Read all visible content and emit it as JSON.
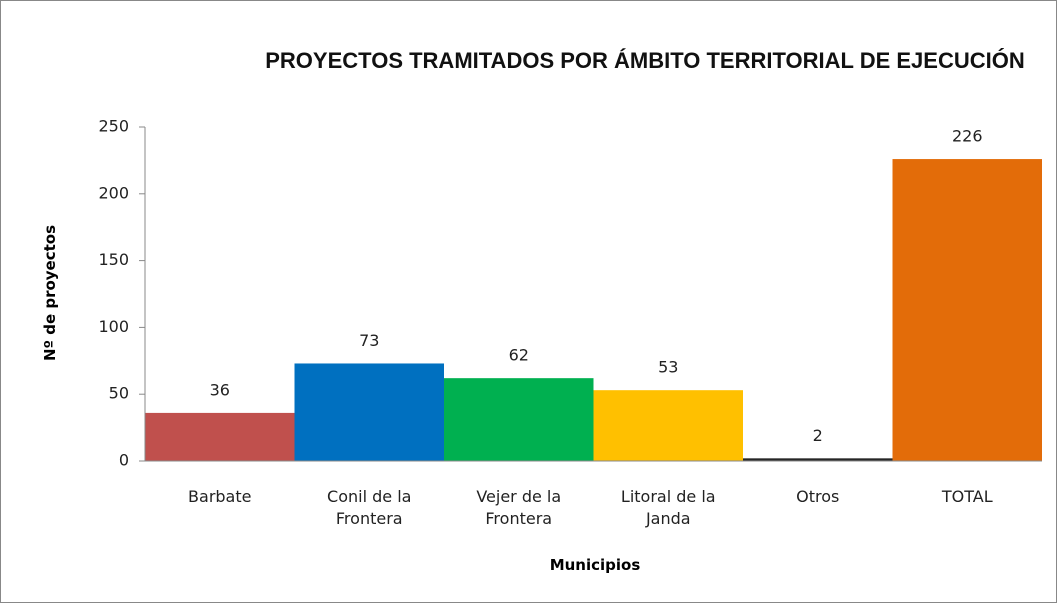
{
  "chart_data": {
    "type": "bar",
    "title": "PROYECTOS TRAMITADOS POR ÁMBITO TERRITORIAL DE EJECUCIÓN",
    "x_label": "Municipios",
    "y_label": "Nº de proyectos",
    "categories": [
      "Barbate",
      "Conil de la Frontera",
      "Vejer de la Frontera",
      "Litoral de la Janda",
      "Otros",
      "TOTAL"
    ],
    "values": [
      36,
      73,
      62,
      53,
      2,
      226
    ],
    "colors": [
      "#c0504d",
      "#0070c0",
      "#00b050",
      "#ffc000",
      "#262626",
      "#e36c09"
    ],
    "ylim": [
      0,
      250
    ],
    "yticks": [
      0,
      50,
      100,
      150,
      200,
      250
    ],
    "grid": false
  }
}
